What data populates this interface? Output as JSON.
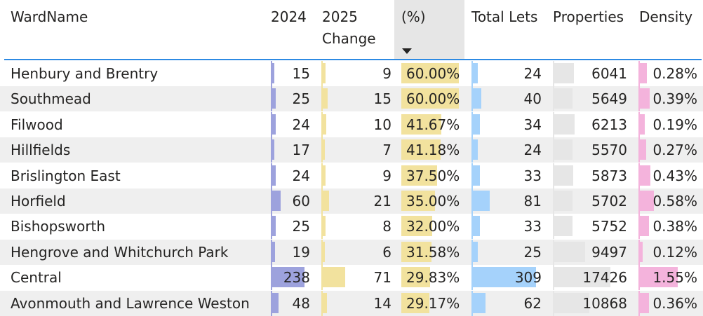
{
  "table": {
    "headers": {
      "ward": "WardName",
      "y2024": "2024",
      "y2025_line1": "2025",
      "y2025_line2": "Change",
      "pct": "(%)",
      "total": "Total Lets",
      "props": "Properties",
      "density": "Density"
    },
    "sort": {
      "column": "pct",
      "direction": "descending",
      "icon": "sort-descending-icon"
    },
    "colors": {
      "bar_2024": "#9da2dd",
      "bar_2025": "#f2e29e",
      "bar_pct": "#f2e29e",
      "bar_total": "#a5d2fb",
      "bar_props": "#e6e6e6",
      "bar_density": "#f4b3dc",
      "header_line": "#2d8ae3",
      "sorted_header_bg": "#e6e6e6",
      "stripe": "#efefef"
    },
    "rows": [
      {
        "ward": "Henbury and Brentry",
        "y2024": "15",
        "y2025": "9",
        "pct": "60.00%",
        "total": "24",
        "props": "6041",
        "density": "0.28%"
      },
      {
        "ward": "Southmead",
        "y2024": "25",
        "y2025": "15",
        "pct": "60.00%",
        "total": "40",
        "props": "5649",
        "density": "0.39%"
      },
      {
        "ward": "Filwood",
        "y2024": "24",
        "y2025": "10",
        "pct": "41.67%",
        "total": "34",
        "props": "6213",
        "density": "0.19%"
      },
      {
        "ward": "Hillfields",
        "y2024": "17",
        "y2025": "7",
        "pct": "41.18%",
        "total": "24",
        "props": "5570",
        "density": "0.27%"
      },
      {
        "ward": "Brislington East",
        "y2024": "24",
        "y2025": "9",
        "pct": "37.50%",
        "total": "33",
        "props": "5873",
        "density": "0.43%"
      },
      {
        "ward": "Horfield",
        "y2024": "60",
        "y2025": "21",
        "pct": "35.00%",
        "total": "81",
        "props": "5702",
        "density": "0.58%"
      },
      {
        "ward": "Bishopsworth",
        "y2024": "25",
        "y2025": "8",
        "pct": "32.00%",
        "total": "33",
        "props": "5752",
        "density": "0.38%"
      },
      {
        "ward": "Hengrove and Whitchurch Park",
        "y2024": "19",
        "y2025": "6",
        "pct": "31.58%",
        "total": "25",
        "props": "9497",
        "density": "0.12%"
      },
      {
        "ward": "Central",
        "y2024": "238",
        "y2025": "71",
        "pct": "29.83%",
        "total": "309",
        "props": "17426",
        "density": "1.55%"
      },
      {
        "ward": "Avonmouth and Lawrence Weston",
        "y2024": "48",
        "y2025": "14",
        "pct": "29.17%",
        "total": "62",
        "props": "10868",
        "density": "0.36%"
      }
    ]
  }
}
